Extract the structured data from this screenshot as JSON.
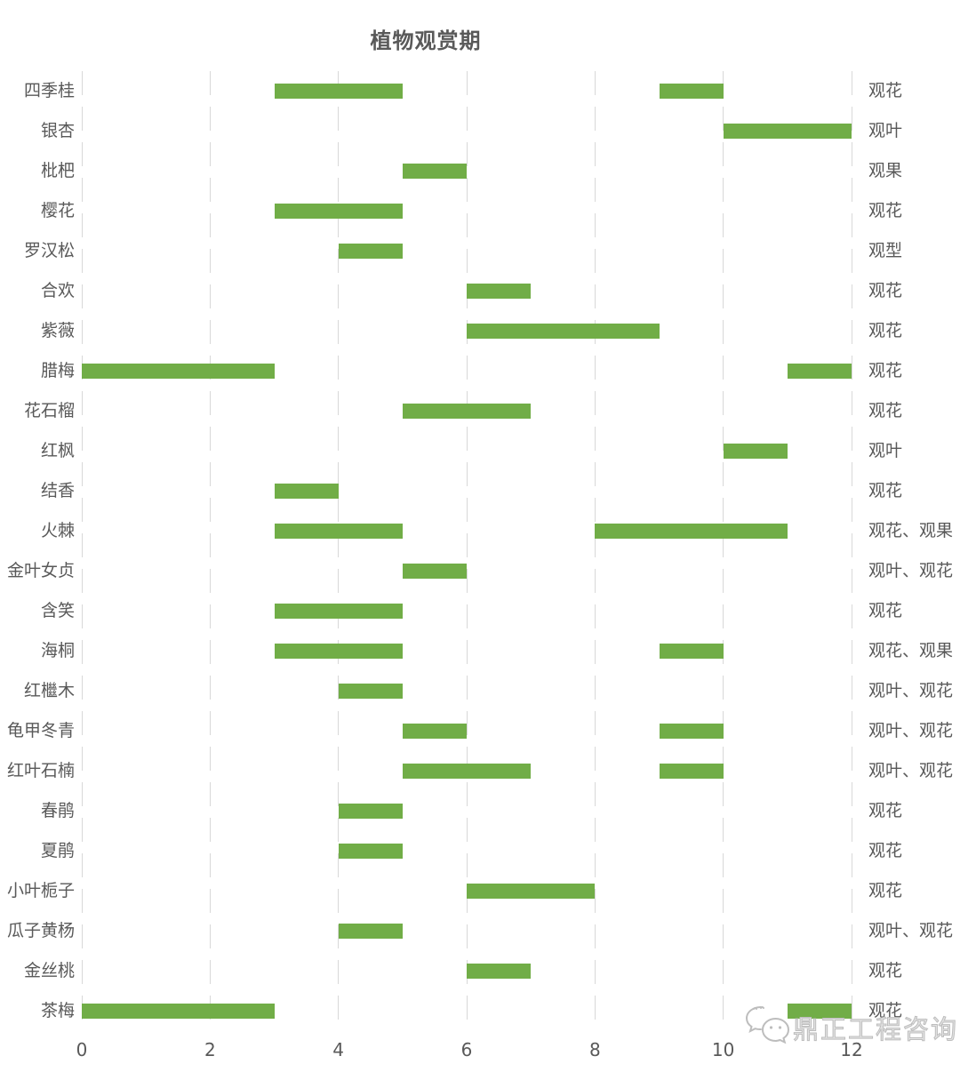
{
  "title": "植物观赏期",
  "watermark": {
    "icon": "wechat-logo-icon",
    "text": "鼎正工程咨询"
  },
  "colors": {
    "bar": "#71AD47",
    "text": "#595959",
    "gridline": "#D8D8D8",
    "watermark_stroke": "#BDBDBD"
  },
  "chart_data": {
    "type": "bar",
    "subtype": "gantt-range",
    "title": "植物观赏期",
    "xlabel": "",
    "ylabel": "",
    "unit": "month",
    "x_axis": {
      "min": 0,
      "max": 12,
      "ticks": [
        0,
        2,
        4,
        6,
        8,
        10,
        12
      ]
    },
    "grid": "vertical-dashed",
    "legend": "none",
    "rows": [
      {
        "plant": "四季桂",
        "periods": [
          [
            3,
            5
          ],
          [
            9,
            10
          ]
        ],
        "category": "观花"
      },
      {
        "plant": "银杏",
        "periods": [
          [
            10,
            12
          ]
        ],
        "category": "观叶"
      },
      {
        "plant": "枇杷",
        "periods": [
          [
            5,
            6
          ]
        ],
        "category": "观果"
      },
      {
        "plant": "樱花",
        "periods": [
          [
            3,
            5
          ]
        ],
        "category": "观花"
      },
      {
        "plant": "罗汉松",
        "periods": [
          [
            4,
            5
          ]
        ],
        "category": "观型"
      },
      {
        "plant": "合欢",
        "periods": [
          [
            6,
            7
          ]
        ],
        "category": "观花"
      },
      {
        "plant": "紫薇",
        "periods": [
          [
            6,
            9
          ]
        ],
        "category": "观花"
      },
      {
        "plant": "腊梅",
        "periods": [
          [
            0,
            3
          ],
          [
            11,
            12
          ]
        ],
        "category": "观花"
      },
      {
        "plant": "花石榴",
        "periods": [
          [
            5,
            7
          ]
        ],
        "category": "观花"
      },
      {
        "plant": "红枫",
        "periods": [
          [
            10,
            11
          ]
        ],
        "category": "观叶"
      },
      {
        "plant": "结香",
        "periods": [
          [
            3,
            4
          ]
        ],
        "category": "观花"
      },
      {
        "plant": "火棘",
        "periods": [
          [
            3,
            5
          ],
          [
            8,
            11
          ]
        ],
        "category": "观花、观果"
      },
      {
        "plant": "金叶女贞",
        "periods": [
          [
            5,
            6
          ]
        ],
        "category": "观叶、观花"
      },
      {
        "plant": "含笑",
        "periods": [
          [
            3,
            5
          ]
        ],
        "category": "观花"
      },
      {
        "plant": "海桐",
        "periods": [
          [
            3,
            5
          ],
          [
            9,
            10
          ]
        ],
        "category": "观花、观果"
      },
      {
        "plant": "红檵木",
        "periods": [
          [
            4,
            5
          ]
        ],
        "category": "观叶、观花"
      },
      {
        "plant": "龟甲冬青",
        "periods": [
          [
            5,
            6
          ],
          [
            9,
            10
          ]
        ],
        "category": "观叶、观花"
      },
      {
        "plant": "红叶石楠",
        "periods": [
          [
            5,
            7
          ],
          [
            9,
            10
          ]
        ],
        "category": "观叶、观花"
      },
      {
        "plant": "春鹃",
        "periods": [
          [
            4,
            5
          ]
        ],
        "category": "观花"
      },
      {
        "plant": "夏鹃",
        "periods": [
          [
            4,
            5
          ]
        ],
        "category": "观花"
      },
      {
        "plant": "小叶栀子",
        "periods": [
          [
            6,
            8
          ]
        ],
        "category": "观花"
      },
      {
        "plant": "瓜子黄杨",
        "periods": [
          [
            4,
            5
          ]
        ],
        "category": "观叶、观花"
      },
      {
        "plant": "金丝桃",
        "periods": [
          [
            6,
            7
          ]
        ],
        "category": "观花"
      },
      {
        "plant": "茶梅",
        "periods": [
          [
            0,
            3
          ],
          [
            11,
            12
          ]
        ],
        "category": "观花"
      }
    ]
  }
}
